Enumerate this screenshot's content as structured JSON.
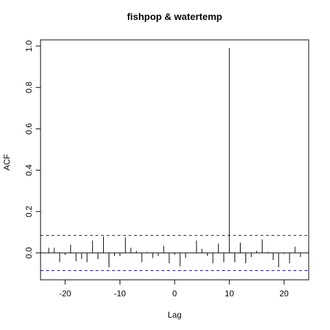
{
  "chart_data": {
    "type": "bar",
    "title": "fishpop & watertemp",
    "xlabel": "Lag",
    "ylabel": "ACF",
    "xlim": [
      -24.5,
      24.5
    ],
    "ylim": [
      -0.13,
      1.03
    ],
    "xticks": [
      -20,
      -10,
      0,
      10,
      20
    ],
    "xtick_labels": [
      "-20",
      "-10",
      "0",
      "10",
      "20"
    ],
    "yticks": [
      0.0,
      0.2,
      0.4,
      0.6,
      0.8,
      1.0
    ],
    "ytick_labels": [
      "0.0",
      "0.2",
      "0.4",
      "0.6",
      "0.8",
      "1.0"
    ],
    "confidence_bound": 0.085,
    "confidence_color": "#0000ff",
    "lags": [
      -23,
      -22,
      -21,
      -20,
      -19,
      -18,
      -17,
      -16,
      -15,
      -14,
      -13,
      -12,
      -11,
      -10,
      -9,
      -8,
      -7,
      -6,
      -5,
      -4,
      -3,
      -2,
      -1,
      0,
      1,
      2,
      3,
      4,
      5,
      6,
      7,
      8,
      9,
      10,
      11,
      12,
      13,
      14,
      15,
      16,
      17,
      18,
      19,
      20,
      21,
      22,
      23
    ],
    "acf": [
      0.025,
      0.025,
      -0.045,
      -0.01,
      0.04,
      -0.04,
      -0.03,
      -0.045,
      0.06,
      -0.03,
      0.08,
      -0.07,
      -0.015,
      -0.015,
      0.075,
      0.025,
      0.01,
      -0.045,
      0.005,
      -0.025,
      -0.015,
      0.035,
      -0.05,
      -0.01,
      -0.065,
      -0.025,
      0.002,
      0.06,
      0.02,
      -0.015,
      -0.05,
      0.045,
      -0.045,
      0.99,
      -0.045,
      0.05,
      -0.05,
      -0.02,
      0.01,
      0.065,
      0.005,
      -0.035,
      -0.07,
      -0.005,
      -0.05,
      0.03,
      -0.02
    ]
  }
}
